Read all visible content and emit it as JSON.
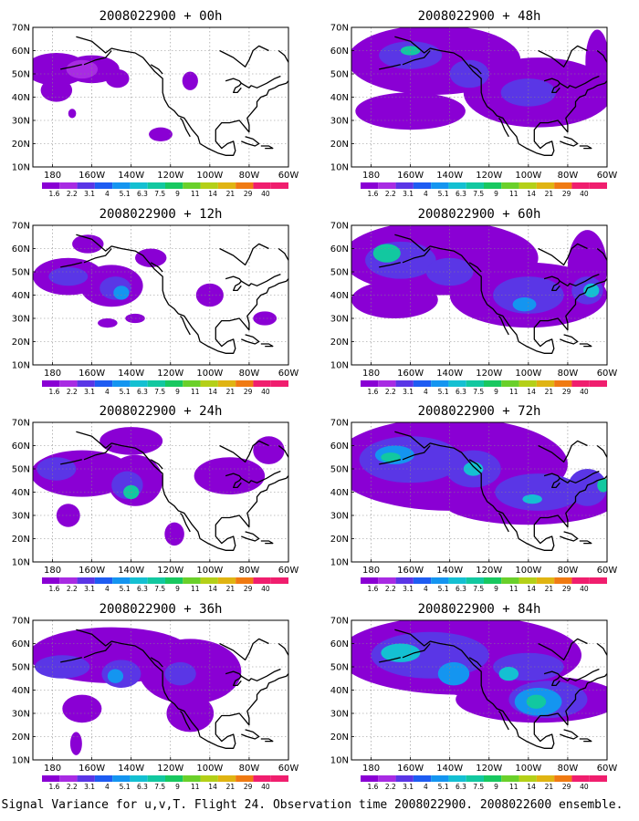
{
  "caption": "Signal Variance for u,v,T. Flight 24. Observation time 2008022900. 2008022600 ensemble.",
  "chart_data": [
    {
      "type": "heatmap",
      "title": "2008022900 + 00h",
      "lead_hours": 0,
      "x_ticks": [
        "180",
        "160W",
        "140W",
        "120W",
        "100W",
        "80W",
        "60W"
      ],
      "y_ticks": [
        "10N",
        "20N",
        "30N",
        "40N",
        "50N",
        "60N",
        "70N"
      ],
      "xlim": [
        -190,
        -60
      ],
      "ylim": [
        10,
        70
      ],
      "grid": true,
      "colorbar_levels": [
        "1.6",
        "2.2",
        "3.1",
        "4",
        "5.1",
        "6.3",
        "7.5",
        "9",
        "11",
        "14",
        "21",
        "29",
        "40"
      ],
      "blobs": [
        {
          "lon": -178,
          "lat": 52,
          "rlon": 16,
          "rlat": 7,
          "level": 1
        },
        {
          "lon": -160,
          "lat": 52,
          "rlon": 14,
          "rlat": 6,
          "level": 1
        },
        {
          "lon": -178,
          "lat": 43,
          "rlon": 8,
          "rlat": 5,
          "level": 1
        },
        {
          "lon": -147,
          "lat": 48,
          "rlon": 6,
          "rlat": 4,
          "level": 1
        },
        {
          "lon": -125,
          "lat": 24,
          "rlon": 6,
          "rlat": 3,
          "level": 1
        },
        {
          "lon": -110,
          "lat": 47,
          "rlon": 4,
          "rlat": 4,
          "level": 1
        },
        {
          "lon": -170,
          "lat": 33,
          "rlon": 2,
          "rlat": 2,
          "level": 1
        },
        {
          "lon": -165,
          "lat": 52,
          "rlon": 8,
          "rlat": 4,
          "level": 2
        }
      ]
    },
    {
      "type": "heatmap",
      "title": "2008022900 + 12h",
      "lead_hours": 12,
      "x_ticks": [
        "180",
        "160W",
        "140W",
        "120W",
        "100W",
        "80W",
        "60W"
      ],
      "y_ticks": [
        "10N",
        "20N",
        "30N",
        "40N",
        "50N",
        "60N",
        "70N"
      ],
      "xlim": [
        -190,
        -60
      ],
      "ylim": [
        10,
        70
      ],
      "grid": true,
      "colorbar_levels": [
        "1.6",
        "2.2",
        "3.1",
        "4",
        "5.1",
        "6.3",
        "7.5",
        "9",
        "11",
        "14",
        "21",
        "29",
        "40"
      ],
      "blobs": [
        {
          "lon": -172,
          "lat": 48,
          "rlon": 18,
          "rlat": 8,
          "level": 1
        },
        {
          "lon": -150,
          "lat": 44,
          "rlon": 16,
          "rlat": 9,
          "level": 1
        },
        {
          "lon": -162,
          "lat": 62,
          "rlon": 8,
          "rlat": 4,
          "level": 1
        },
        {
          "lon": -130,
          "lat": 56,
          "rlon": 8,
          "rlat": 4,
          "level": 1
        },
        {
          "lon": -152,
          "lat": 28,
          "rlon": 5,
          "rlat": 2,
          "level": 1
        },
        {
          "lon": -138,
          "lat": 30,
          "rlon": 5,
          "rlat": 2,
          "level": 1
        },
        {
          "lon": -100,
          "lat": 40,
          "rlon": 7,
          "rlat": 5,
          "level": 1
        },
        {
          "lon": -72,
          "lat": 30,
          "rlon": 6,
          "rlat": 3,
          "level": 1
        },
        {
          "lon": -172,
          "lat": 48,
          "rlon": 10,
          "rlat": 4,
          "level": 3
        },
        {
          "lon": -148,
          "lat": 43,
          "rlon": 8,
          "rlat": 5,
          "level": 3
        },
        {
          "lon": -145,
          "lat": 41,
          "rlon": 4,
          "rlat": 3,
          "level": 5
        }
      ]
    },
    {
      "type": "heatmap",
      "title": "2008022900 + 24h",
      "lead_hours": 24,
      "x_ticks": [
        "180",
        "160W",
        "140W",
        "120W",
        "100W",
        "80W",
        "60W"
      ],
      "y_ticks": [
        "10N",
        "20N",
        "30N",
        "40N",
        "50N",
        "60N",
        "70N"
      ],
      "xlim": [
        -190,
        -60
      ],
      "ylim": [
        10,
        70
      ],
      "grid": true,
      "colorbar_levels": [
        "1.6",
        "2.2",
        "3.1",
        "4",
        "5.1",
        "6.3",
        "7.5",
        "9",
        "11",
        "14",
        "21",
        "29",
        "40"
      ],
      "blobs": [
        {
          "lon": -165,
          "lat": 48,
          "rlon": 26,
          "rlat": 10,
          "level": 1
        },
        {
          "lon": -138,
          "lat": 45,
          "rlon": 14,
          "rlat": 11,
          "level": 1
        },
        {
          "lon": -140,
          "lat": 62,
          "rlon": 16,
          "rlat": 6,
          "level": 1
        },
        {
          "lon": -90,
          "lat": 47,
          "rlon": 18,
          "rlat": 8,
          "level": 1
        },
        {
          "lon": -70,
          "lat": 58,
          "rlon": 8,
          "rlat": 6,
          "level": 1
        },
        {
          "lon": -172,
          "lat": 30,
          "rlon": 6,
          "rlat": 5,
          "level": 1
        },
        {
          "lon": -118,
          "lat": 22,
          "rlon": 5,
          "rlat": 5,
          "level": 1
        },
        {
          "lon": -178,
          "lat": 50,
          "rlon": 10,
          "rlat": 5,
          "level": 3
        },
        {
          "lon": -142,
          "lat": 43,
          "rlon": 8,
          "rlat": 6,
          "level": 3
        },
        {
          "lon": -140,
          "lat": 40,
          "rlon": 4,
          "rlat": 3,
          "level": 7
        }
      ]
    },
    {
      "type": "heatmap",
      "title": "2008022900 + 36h",
      "lead_hours": 36,
      "x_ticks": [
        "180",
        "160W",
        "140W",
        "120W",
        "100W",
        "80W",
        "60W"
      ],
      "y_ticks": [
        "10N",
        "20N",
        "30N",
        "40N",
        "50N",
        "60N",
        "70N"
      ],
      "xlim": [
        -190,
        -60
      ],
      "ylim": [
        10,
        70
      ],
      "grid": true,
      "colorbar_levels": [
        "1.6",
        "2.2",
        "3.1",
        "4",
        "5.1",
        "6.3",
        "7.5",
        "9",
        "11",
        "14",
        "21",
        "29",
        "40"
      ],
      "blobs": [
        {
          "lon": -150,
          "lat": 55,
          "rlon": 42,
          "rlat": 12,
          "level": 1
        },
        {
          "lon": -110,
          "lat": 48,
          "rlon": 26,
          "rlat": 14,
          "level": 1
        },
        {
          "lon": -165,
          "lat": 32,
          "rlon": 10,
          "rlat": 6,
          "level": 1
        },
        {
          "lon": -110,
          "lat": 30,
          "rlon": 12,
          "rlat": 8,
          "level": 1
        },
        {
          "lon": -168,
          "lat": 17,
          "rlon": 3,
          "rlat": 5,
          "level": 1
        },
        {
          "lon": -175,
          "lat": 50,
          "rlon": 14,
          "rlat": 5,
          "level": 3
        },
        {
          "lon": -145,
          "lat": 47,
          "rlon": 10,
          "rlat": 6,
          "level": 3
        },
        {
          "lon": -115,
          "lat": 47,
          "rlon": 8,
          "rlat": 5,
          "level": 3
        },
        {
          "lon": -148,
          "lat": 46,
          "rlon": 4,
          "rlat": 3,
          "level": 5
        }
      ]
    },
    {
      "type": "heatmap",
      "title": "2008022900 + 48h",
      "lead_hours": 48,
      "x_ticks": [
        "180",
        "160W",
        "140W",
        "120W",
        "100W",
        "80W",
        "60W"
      ],
      "y_ticks": [
        "10N",
        "20N",
        "30N",
        "40N",
        "50N",
        "60N",
        "70N"
      ],
      "xlim": [
        -190,
        -60
      ],
      "ylim": [
        10,
        70
      ],
      "grid": true,
      "colorbar_levels": [
        "1.6",
        "2.2",
        "3.1",
        "4",
        "5.1",
        "6.3",
        "7.5",
        "9",
        "11",
        "14",
        "21",
        "29",
        "40"
      ],
      "blobs": [
        {
          "lon": -148,
          "lat": 56,
          "rlon": 44,
          "rlat": 15,
          "level": 1
        },
        {
          "lon": -95,
          "lat": 42,
          "rlon": 38,
          "rlat": 15,
          "level": 1
        },
        {
          "lon": -160,
          "lat": 34,
          "rlon": 28,
          "rlat": 8,
          "level": 1
        },
        {
          "lon": -65,
          "lat": 55,
          "rlon": 6,
          "rlat": 14,
          "level": 1
        },
        {
          "lon": -160,
          "lat": 58,
          "rlon": 16,
          "rlat": 6,
          "level": 3
        },
        {
          "lon": -130,
          "lat": 50,
          "rlon": 10,
          "rlat": 6,
          "level": 3
        },
        {
          "lon": -100,
          "lat": 42,
          "rlon": 14,
          "rlat": 6,
          "level": 3
        },
        {
          "lon": -160,
          "lat": 60,
          "rlon": 5,
          "rlat": 2,
          "level": 7
        }
      ]
    },
    {
      "type": "heatmap",
      "title": "2008022900 + 60h",
      "lead_hours": 60,
      "x_ticks": [
        "180",
        "160W",
        "140W",
        "120W",
        "100W",
        "80W",
        "60W"
      ],
      "y_ticks": [
        "10N",
        "20N",
        "30N",
        "40N",
        "50N",
        "60N",
        "70N"
      ],
      "xlim": [
        -190,
        -60
      ],
      "ylim": [
        10,
        70
      ],
      "grid": true,
      "colorbar_levels": [
        "1.6",
        "2.2",
        "3.1",
        "4",
        "5.1",
        "6.3",
        "7.5",
        "9",
        "11",
        "14",
        "21",
        "29",
        "40"
      ],
      "blobs": [
        {
          "lon": -145,
          "lat": 56,
          "rlon": 50,
          "rlat": 16,
          "level": 1
        },
        {
          "lon": -100,
          "lat": 40,
          "rlon": 40,
          "rlat": 14,
          "level": 1
        },
        {
          "lon": -168,
          "lat": 38,
          "rlon": 22,
          "rlat": 8,
          "level": 1
        },
        {
          "lon": -70,
          "lat": 52,
          "rlon": 10,
          "rlat": 16,
          "level": 1
        },
        {
          "lon": -165,
          "lat": 55,
          "rlon": 18,
          "rlat": 8,
          "level": 3
        },
        {
          "lon": -140,
          "lat": 50,
          "rlon": 12,
          "rlat": 6,
          "level": 3
        },
        {
          "lon": -100,
          "lat": 40,
          "rlon": 18,
          "rlat": 8,
          "level": 3
        },
        {
          "lon": -70,
          "lat": 42,
          "rlon": 8,
          "rlat": 6,
          "level": 3
        },
        {
          "lon": -172,
          "lat": 58,
          "rlon": 7,
          "rlat": 4,
          "level": 7
        },
        {
          "lon": -102,
          "lat": 36,
          "rlon": 6,
          "rlat": 3,
          "level": 5
        },
        {
          "lon": -68,
          "lat": 42,
          "rlon": 4,
          "rlat": 3,
          "level": 6
        }
      ]
    },
    {
      "type": "heatmap",
      "title": "2008022900 + 72h",
      "lead_hours": 72,
      "x_ticks": [
        "180",
        "160W",
        "140W",
        "120W",
        "100W",
        "80W",
        "60W"
      ],
      "y_ticks": [
        "10N",
        "20N",
        "30N",
        "40N",
        "50N",
        "60N",
        "70N"
      ],
      "xlim": [
        -190,
        -60
      ],
      "ylim": [
        10,
        70
      ],
      "grid": true,
      "colorbar_levels": [
        "1.6",
        "2.2",
        "3.1",
        "4",
        "5.1",
        "6.3",
        "7.5",
        "9",
        "11",
        "14",
        "21",
        "29",
        "40"
      ],
      "blobs": [
        {
          "lon": -140,
          "lat": 52,
          "rlon": 60,
          "rlat": 20,
          "level": 1
        },
        {
          "lon": -100,
          "lat": 36,
          "rlon": 44,
          "rlat": 10,
          "level": 1
        },
        {
          "lon": -160,
          "lat": 54,
          "rlon": 26,
          "rlat": 10,
          "level": 3
        },
        {
          "lon": -128,
          "lat": 50,
          "rlon": 14,
          "rlat": 8,
          "level": 3
        },
        {
          "lon": -95,
          "lat": 40,
          "rlon": 22,
          "rlat": 8,
          "level": 3
        },
        {
          "lon": -70,
          "lat": 42,
          "rlon": 10,
          "rlat": 8,
          "level": 3
        },
        {
          "lon": -168,
          "lat": 56,
          "rlon": 10,
          "rlat": 4,
          "level": 5
        },
        {
          "lon": -170,
          "lat": 55,
          "rlon": 5,
          "rlat": 2,
          "level": 7
        },
        {
          "lon": -128,
          "lat": 50,
          "rlon": 5,
          "rlat": 3,
          "level": 6
        },
        {
          "lon": -98,
          "lat": 37,
          "rlon": 5,
          "rlat": 2,
          "level": 6
        },
        {
          "lon": -62,
          "lat": 43,
          "rlon": 3,
          "rlat": 3,
          "level": 7
        }
      ]
    },
    {
      "type": "heatmap",
      "title": "2008022900 + 84h",
      "lead_hours": 84,
      "x_ticks": [
        "180",
        "160W",
        "140W",
        "120W",
        "100W",
        "80W",
        "60W"
      ],
      "y_ticks": [
        "10N",
        "20N",
        "30N",
        "40N",
        "50N",
        "60N",
        "70N"
      ],
      "xlim": [
        -190,
        -60
      ],
      "ylim": [
        10,
        70
      ],
      "grid": true,
      "colorbar_levels": [
        "1.6",
        "2.2",
        "3.1",
        "4",
        "5.1",
        "6.3",
        "7.5",
        "9",
        "11",
        "14",
        "21",
        "29",
        "40"
      ],
      "blobs": [
        {
          "lon": -135,
          "lat": 55,
          "rlon": 62,
          "rlat": 17,
          "level": 1
        },
        {
          "lon": -95,
          "lat": 36,
          "rlon": 42,
          "rlat": 10,
          "level": 1
        },
        {
          "lon": -120,
          "lat": 45,
          "rlon": 36,
          "rlat": 8,
          "level": 1
        },
        {
          "lon": -150,
          "lat": 55,
          "rlon": 30,
          "rlat": 10,
          "level": 3
        },
        {
          "lon": -100,
          "lat": 50,
          "rlon": 18,
          "rlat": 6,
          "level": 3
        },
        {
          "lon": -90,
          "lat": 36,
          "rlon": 20,
          "rlat": 8,
          "level": 3
        },
        {
          "lon": -165,
          "lat": 56,
          "rlon": 10,
          "rlat": 4,
          "level": 6
        },
        {
          "lon": -138,
          "lat": 47,
          "rlon": 8,
          "rlat": 5,
          "level": 5
        },
        {
          "lon": -95,
          "lat": 35,
          "rlon": 12,
          "rlat": 6,
          "level": 5
        },
        {
          "lon": -96,
          "lat": 35,
          "rlon": 5,
          "rlat": 3,
          "level": 7
        },
        {
          "lon": -110,
          "lat": 47,
          "rlon": 5,
          "rlat": 3,
          "level": 6
        }
      ]
    }
  ],
  "colors": {
    "levels": [
      "#8a00d4",
      "#a82be3",
      "#5a36e6",
      "#1e5cf2",
      "#1495f0",
      "#14c0d2",
      "#12c8a0",
      "#18c860",
      "#6ad02a",
      "#b4d018",
      "#e0b412",
      "#f07a12",
      "#f01e6e"
    ],
    "coast": "#000000",
    "grid": "#888888"
  }
}
